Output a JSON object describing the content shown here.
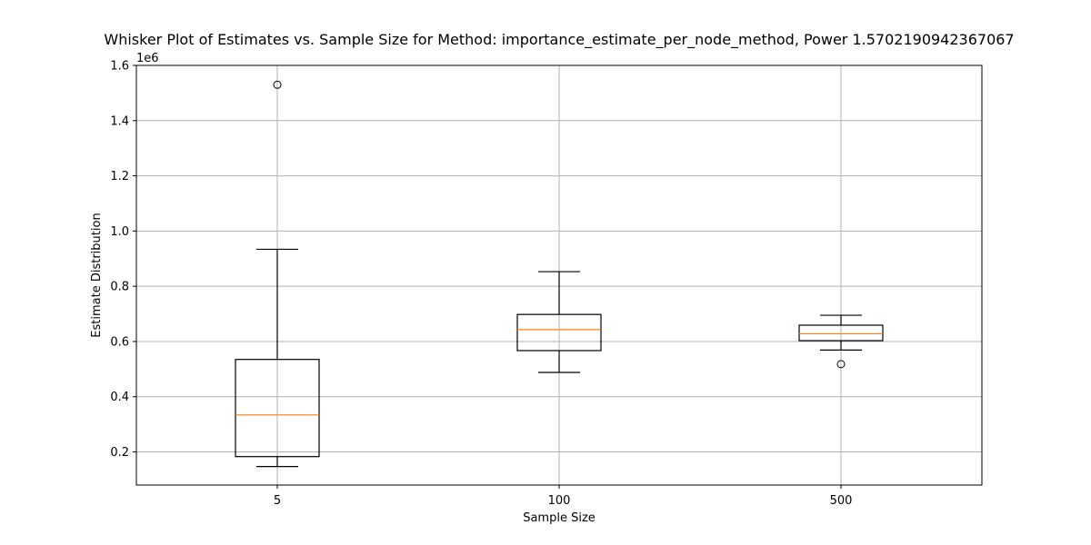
{
  "chart_data": {
    "type": "box",
    "title": "Whisker Plot of Estimates vs. Sample Size for Method: importance_estimate_per_node_method, Power 1.5702190942367067",
    "xlabel": "Sample Size",
    "ylabel": "Estimate Distribution",
    "y_scale_label": "1e6",
    "ylim": [
      80000,
      1600000
    ],
    "y_ticks": [
      200000,
      400000,
      600000,
      800000,
      1000000,
      1200000,
      1400000,
      1600000
    ],
    "y_tick_labels": [
      "0.2",
      "0.4",
      "0.6",
      "0.8",
      "1.0",
      "1.2",
      "1.4",
      "1.6"
    ],
    "grid": true,
    "categories": [
      "5",
      "100",
      "500"
    ],
    "boxes": [
      {
        "category": "5",
        "whisker_low": 147000,
        "q1": 183000,
        "median": 334000,
        "q3": 535000,
        "whisker_high": 934000,
        "outliers": [
          1530000
        ]
      },
      {
        "category": "100",
        "whisker_low": 488000,
        "q1": 567000,
        "median": 643000,
        "q3": 698000,
        "whisker_high": 853000,
        "outliers": []
      },
      {
        "category": "500",
        "whisker_low": 569000,
        "q1": 603000,
        "median": 628000,
        "q3": 659000,
        "whisker_high": 695000,
        "outliers": [
          518000
        ]
      }
    ],
    "colors": {
      "box": "#000000",
      "median": "#ff7f0e",
      "grid": "#b0b0b0"
    }
  }
}
